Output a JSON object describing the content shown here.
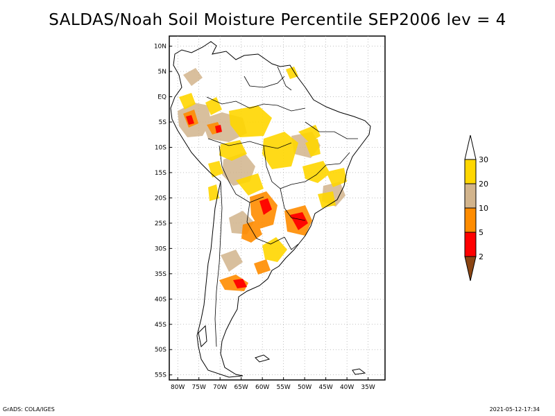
{
  "title": "SALDAS/Noah Soil Moisture Percentile SEP2006 lev = 4",
  "map": {
    "lat_labels": [
      "10N",
      "5N",
      "EQ",
      "5S",
      "10S",
      "15S",
      "20S",
      "25S",
      "30S",
      "35S",
      "40S",
      "45S",
      "50S",
      "55S"
    ],
    "lon_labels": [
      "80W",
      "75W",
      "70W",
      "65W",
      "60W",
      "55W",
      "50W",
      "45W",
      "40W",
      "35W"
    ],
    "lat_values": [
      10,
      5,
      0,
      -5,
      -10,
      -15,
      -20,
      -25,
      -30,
      -35,
      -40,
      -45,
      -50,
      -55
    ],
    "lon_values": [
      -80,
      -75,
      -70,
      -65,
      -60,
      -55,
      -50,
      -45,
      -40,
      -35
    ]
  },
  "legend": {
    "labels": [
      "30",
      "20",
      "10",
      "5",
      "2"
    ],
    "colors": {
      "above_30": "#ffffff",
      "20_30": "#ffd700",
      "10_20": "#d2b48c",
      "5_10": "#ff8c00",
      "2_5": "#ff0000",
      "below_2": "#8b4513"
    }
  },
  "footer": {
    "left": "GrADS: COLA/IGES",
    "right": "2021-05-12-17:34"
  }
}
